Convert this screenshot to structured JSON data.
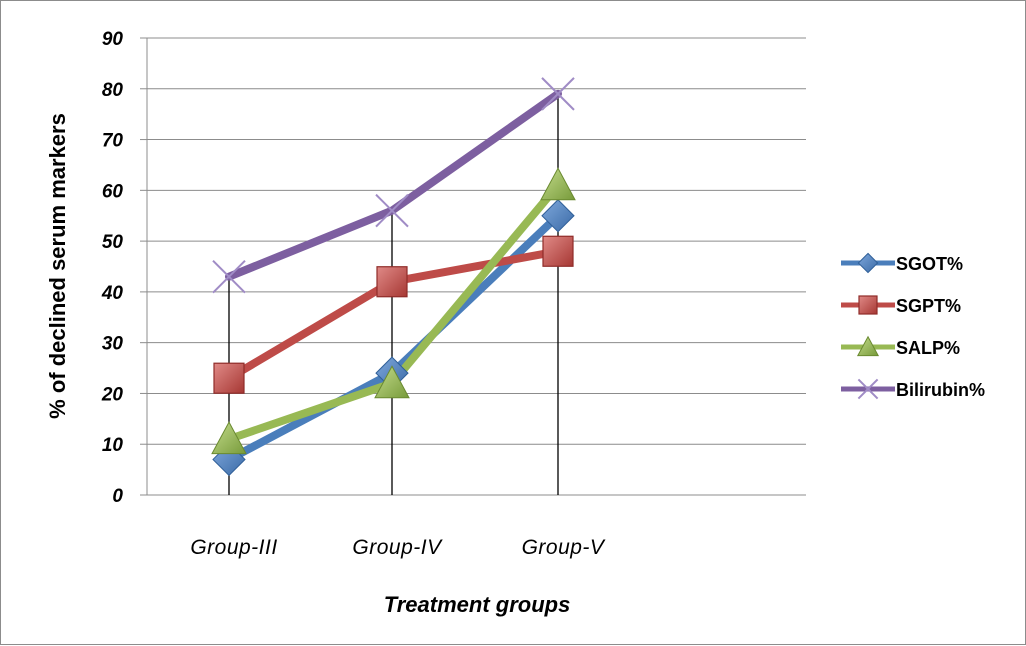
{
  "chart_data": {
    "type": "line",
    "title": "",
    "xlabel": "Treatment groups",
    "ylabel": "% of declined serum markers",
    "categories": [
      "Group-III",
      "Group-IV",
      "Group-V"
    ],
    "ylim": [
      0,
      90
    ],
    "yticks": [
      "0",
      "10",
      "20",
      "30",
      "40",
      "50",
      "60",
      "70",
      "80",
      "90"
    ],
    "grid": "horizontal",
    "legend_position": "right",
    "series": [
      {
        "name": "SGOT%",
        "values": [
          7,
          24,
          55
        ],
        "color": "#4a7ebb",
        "marker": "diamond"
      },
      {
        "name": "SGPT%",
        "values": [
          23,
          42,
          48
        ],
        "color": "#be4b48",
        "marker": "square"
      },
      {
        "name": "SALP%",
        "values": [
          11,
          22,
          61
        ],
        "color": "#98b954",
        "marker": "triangle"
      },
      {
        "name": "Bilirubin%",
        "values": [
          43,
          56,
          79
        ],
        "color": "#7d5fa0",
        "marker": "x"
      }
    ]
  }
}
